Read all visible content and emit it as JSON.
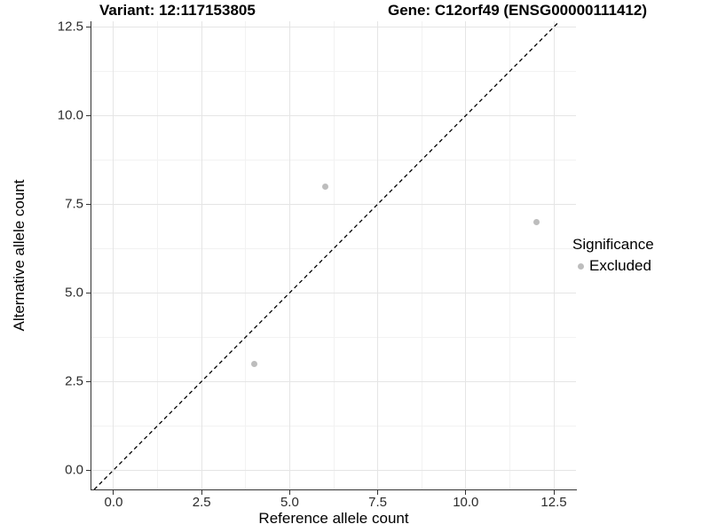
{
  "chart_data": {
    "type": "scatter",
    "titles": {
      "left": "Variant: 12:117153805",
      "right": "Gene: C12orf49 (ENSG00000111412)"
    },
    "xlabel": "Reference allele count",
    "ylabel": "Alternative allele count",
    "x_domain": [
      -0.63,
      13.13
    ],
    "y_domain": [
      -0.55,
      12.66
    ],
    "x_ticks": [
      {
        "v": 0,
        "label": "0.0"
      },
      {
        "v": 2.5,
        "label": "2.5"
      },
      {
        "v": 5,
        "label": "5.0"
      },
      {
        "v": 7.5,
        "label": "7.5"
      },
      {
        "v": 10,
        "label": "10.0"
      },
      {
        "v": 12.5,
        "label": "12.5"
      }
    ],
    "y_ticks": [
      {
        "v": 0,
        "label": "0.0"
      },
      {
        "v": 2.5,
        "label": "2.5"
      },
      {
        "v": 5,
        "label": "5.0"
      },
      {
        "v": 7.5,
        "label": "7.5"
      },
      {
        "v": 10,
        "label": "10.0"
      },
      {
        "v": 12.5,
        "label": "12.5"
      }
    ],
    "x_minor": [
      1.25,
      3.75,
      6.25,
      8.75,
      11.25
    ],
    "y_minor": [
      1.25,
      3.75,
      6.25,
      8.75,
      11.25
    ],
    "grid": {
      "major_color": "#e5e5e5",
      "minor_color": "#f2f2f2"
    },
    "identity_line": {
      "slope": 1,
      "intercept": 0,
      "style": "dashed",
      "color": "#000000"
    },
    "series": [
      {
        "name": "Excluded",
        "color": "#bdbdbd",
        "points": [
          {
            "x": 4,
            "y": 3
          },
          {
            "x": 6,
            "y": 8
          },
          {
            "x": 12,
            "y": 7
          }
        ]
      }
    ],
    "legend": {
      "title": "Significance",
      "position": "right",
      "items": [
        {
          "label": "Excluded",
          "color": "#bdbdbd"
        }
      ]
    }
  }
}
